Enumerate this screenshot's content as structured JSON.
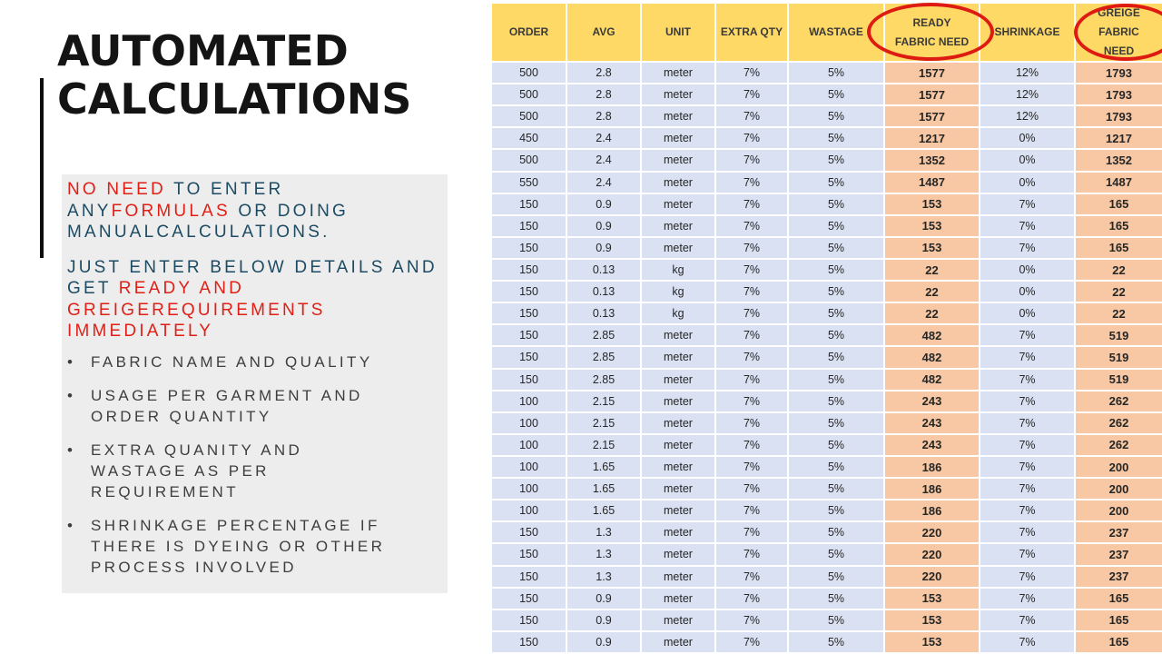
{
  "colors": {
    "header-bg": "#FFD966",
    "row-bg": "#D9E1F2",
    "need-bg": "#F7C8A3",
    "circle": "#DD1B12",
    "red": "#E02017",
    "navy": "#1C4B63"
  },
  "panel": {
    "title_line1": "AUTOMATED",
    "title_line2": "CALCULATIONS",
    "intro1": {
      "seg1": "NO NEED",
      "seg2": " TO ENTER ANY",
      "seg3": "FORMULAS",
      "seg4": " OR DOING MANUAL",
      "seg5": "CALCULATIONS."
    },
    "intro2": {
      "seg1": "JUST ENTER BELOW DETAILS",
      "seg2": "AND GET ",
      "seg3": "READY AND GREIGE",
      "seg4": "REQUIREMENTS IMMEDIATELY"
    },
    "bullet_marker": "•",
    "bullets": [
      {
        "lines": [
          "FABRIC NAME AND QUALITY"
        ]
      },
      {
        "lines": [
          "USAGE PER GARMENT AND",
          "ORDER QUANTITY"
        ]
      },
      {
        "lines": [
          "EXTRA QUANITY AND",
          "WASTAGE AS PER",
          "REQUIREMENT"
        ]
      },
      {
        "lines": [
          "SHRINKAGE PERCENTAGE IF",
          "THERE IS DYEING OR OTHER",
          "PROCESS INVOLVED"
        ]
      }
    ]
  },
  "table": {
    "headers": [
      "ORDER",
      "AVG",
      "UNIT",
      "EXTRA QTY",
      "WASTAGE",
      "READY FABRIC NEED",
      "SHRINKAGE",
      "GREIGE FABRIC NEED"
    ],
    "circled_columns": [
      "READY FABRIC NEED",
      "GREIGE FABRIC NEED"
    ],
    "rows": [
      [
        "500",
        "2.8",
        "meter",
        "7%",
        "5%",
        "1577",
        "12%",
        "1793"
      ],
      [
        "500",
        "2.8",
        "meter",
        "7%",
        "5%",
        "1577",
        "12%",
        "1793"
      ],
      [
        "500",
        "2.8",
        "meter",
        "7%",
        "5%",
        "1577",
        "12%",
        "1793"
      ],
      [
        "450",
        "2.4",
        "meter",
        "7%",
        "5%",
        "1217",
        "0%",
        "1217"
      ],
      [
        "500",
        "2.4",
        "meter",
        "7%",
        "5%",
        "1352",
        "0%",
        "1352"
      ],
      [
        "550",
        "2.4",
        "meter",
        "7%",
        "5%",
        "1487",
        "0%",
        "1487"
      ],
      [
        "150",
        "0.9",
        "meter",
        "7%",
        "5%",
        "153",
        "7%",
        "165"
      ],
      [
        "150",
        "0.9",
        "meter",
        "7%",
        "5%",
        "153",
        "7%",
        "165"
      ],
      [
        "150",
        "0.9",
        "meter",
        "7%",
        "5%",
        "153",
        "7%",
        "165"
      ],
      [
        "150",
        "0.13",
        "kg",
        "7%",
        "5%",
        "22",
        "0%",
        "22"
      ],
      [
        "150",
        "0.13",
        "kg",
        "7%",
        "5%",
        "22",
        "0%",
        "22"
      ],
      [
        "150",
        "0.13",
        "kg",
        "7%",
        "5%",
        "22",
        "0%",
        "22"
      ],
      [
        "150",
        "2.85",
        "meter",
        "7%",
        "5%",
        "482",
        "7%",
        "519"
      ],
      [
        "150",
        "2.85",
        "meter",
        "7%",
        "5%",
        "482",
        "7%",
        "519"
      ],
      [
        "150",
        "2.85",
        "meter",
        "7%",
        "5%",
        "482",
        "7%",
        "519"
      ],
      [
        "100",
        "2.15",
        "meter",
        "7%",
        "5%",
        "243",
        "7%",
        "262"
      ],
      [
        "100",
        "2.15",
        "meter",
        "7%",
        "5%",
        "243",
        "7%",
        "262"
      ],
      [
        "100",
        "2.15",
        "meter",
        "7%",
        "5%",
        "243",
        "7%",
        "262"
      ],
      [
        "100",
        "1.65",
        "meter",
        "7%",
        "5%",
        "186",
        "7%",
        "200"
      ],
      [
        "100",
        "1.65",
        "meter",
        "7%",
        "5%",
        "186",
        "7%",
        "200"
      ],
      [
        "100",
        "1.65",
        "meter",
        "7%",
        "5%",
        "186",
        "7%",
        "200"
      ],
      [
        "150",
        "1.3",
        "meter",
        "7%",
        "5%",
        "220",
        "7%",
        "237"
      ],
      [
        "150",
        "1.3",
        "meter",
        "7%",
        "5%",
        "220",
        "7%",
        "237"
      ],
      [
        "150",
        "1.3",
        "meter",
        "7%",
        "5%",
        "220",
        "7%",
        "237"
      ],
      [
        "150",
        "0.9",
        "meter",
        "7%",
        "5%",
        "153",
        "7%",
        "165"
      ],
      [
        "150",
        "0.9",
        "meter",
        "7%",
        "5%",
        "153",
        "7%",
        "165"
      ],
      [
        "150",
        "0.9",
        "meter",
        "7%",
        "5%",
        "153",
        "7%",
        "165"
      ]
    ]
  }
}
